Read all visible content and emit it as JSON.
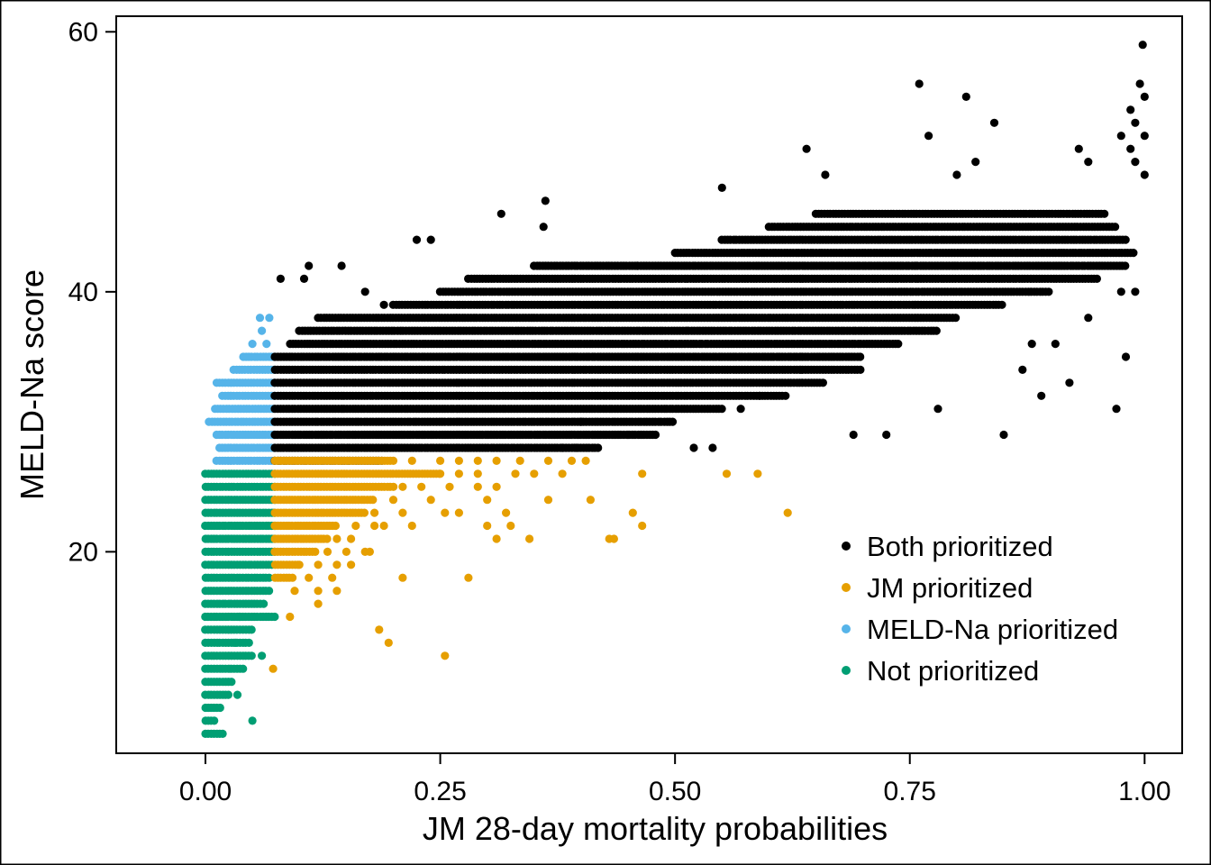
{
  "chart_data": {
    "type": "scatter",
    "xlabel": "JM 28-day mortality probabilities",
    "ylabel": "MELD-Na score",
    "xlim": [
      -0.095,
      1.04
    ],
    "ylim": [
      4.5,
      61.2
    ],
    "x_ticks": [
      0.0,
      0.25,
      0.5,
      0.75,
      1.0
    ],
    "x_tick_labels": [
      "0.00",
      "0.25",
      "0.50",
      "0.75",
      "1.00"
    ],
    "y_ticks": [
      20,
      40,
      60
    ],
    "y_tick_labels": [
      "20",
      "40",
      "60"
    ],
    "grid": false,
    "legend": {
      "placement": "bottom-right",
      "entries": [
        {
          "label": "Both prioritized",
          "color": "#000000"
        },
        {
          "label": "JM prioritized",
          "color": "#E69F00"
        },
        {
          "label": "MELD-Na prioritized",
          "color": "#56B4E9"
        },
        {
          "label": "Not prioritized",
          "color": "#009E73"
        }
      ]
    },
    "series": [
      {
        "name": "Not prioritized",
        "color": "#009E73",
        "bands": [
          {
            "y": 26,
            "x_min": 0.0,
            "x_max": 0.074
          },
          {
            "y": 25,
            "x_min": 0.0,
            "x_max": 0.074
          },
          {
            "y": 24,
            "x_min": 0.0,
            "x_max": 0.074
          },
          {
            "y": 23,
            "x_min": 0.0,
            "x_max": 0.074
          },
          {
            "y": 22,
            "x_min": 0.0,
            "x_max": 0.074
          },
          {
            "y": 21,
            "x_min": 0.0,
            "x_max": 0.074
          },
          {
            "y": 20,
            "x_min": 0.0,
            "x_max": 0.074
          },
          {
            "y": 19,
            "x_min": 0.0,
            "x_max": 0.072
          },
          {
            "y": 18,
            "x_min": 0.0,
            "x_max": 0.07
          },
          {
            "y": 17,
            "x_min": 0.0,
            "x_max": 0.068
          },
          {
            "y": 16,
            "x_min": 0.0,
            "x_max": 0.06
          },
          {
            "y": 15,
            "x_min": 0.0,
            "x_max": 0.074
          },
          {
            "y": 14,
            "x_min": 0.0,
            "x_max": 0.052
          },
          {
            "y": 13,
            "x_min": 0.0,
            "x_max": 0.048
          },
          {
            "y": 12,
            "x_min": 0.0,
            "x_max": 0.05
          },
          {
            "y": 11,
            "x_min": 0.0,
            "x_max": 0.04
          },
          {
            "y": 10,
            "x_min": 0.0,
            "x_max": 0.03
          },
          {
            "y": 9,
            "x_min": 0.0,
            "x_max": 0.025
          },
          {
            "y": 8,
            "x_min": 0.0,
            "x_max": 0.018
          },
          {
            "y": 7,
            "x_min": 0.0,
            "x_max": 0.012
          },
          {
            "y": 6,
            "x_min": 0.0,
            "x_max": 0.02
          }
        ],
        "points": [
          [
            0.036,
            15
          ],
          [
            0.032,
            13
          ],
          [
            0.034,
            9
          ],
          [
            0.05,
            7
          ],
          [
            0.062,
            16
          ],
          [
            0.06,
            12
          ]
        ]
      },
      {
        "name": "MELD-Na prioritized",
        "color": "#56B4E9",
        "bands": [
          {
            "y": 27,
            "x_min": 0.012,
            "x_max": 0.074
          },
          {
            "y": 28,
            "x_min": 0.015,
            "x_max": 0.074
          },
          {
            "y": 29,
            "x_min": 0.012,
            "x_max": 0.074
          },
          {
            "y": 30,
            "x_min": 0.004,
            "x_max": 0.074
          },
          {
            "y": 31,
            "x_min": 0.01,
            "x_max": 0.074
          },
          {
            "y": 32,
            "x_min": 0.018,
            "x_max": 0.074
          },
          {
            "y": 33,
            "x_min": 0.012,
            "x_max": 0.074
          },
          {
            "y": 34,
            "x_min": 0.03,
            "x_max": 0.074
          },
          {
            "y": 35,
            "x_min": 0.04,
            "x_max": 0.074
          }
        ],
        "points": [
          [
            0.05,
            36
          ],
          [
            0.065,
            36
          ],
          [
            0.058,
            38
          ],
          [
            0.068,
            38
          ],
          [
            0.06,
            37
          ]
        ]
      },
      {
        "name": "Both prioritized",
        "color": "#000000",
        "bands": [
          {
            "y": 27,
            "x_min": 0.074,
            "x_max": 0.19
          },
          {
            "y": 28,
            "x_min": 0.074,
            "x_max": 0.42
          },
          {
            "y": 29,
            "x_min": 0.074,
            "x_max": 0.48
          },
          {
            "y": 30,
            "x_min": 0.074,
            "x_max": 0.5
          },
          {
            "y": 31,
            "x_min": 0.074,
            "x_max": 0.55
          },
          {
            "y": 32,
            "x_min": 0.074,
            "x_max": 0.62
          },
          {
            "y": 33,
            "x_min": 0.074,
            "x_max": 0.66
          },
          {
            "y": 34,
            "x_min": 0.074,
            "x_max": 0.7
          },
          {
            "y": 35,
            "x_min": 0.074,
            "x_max": 0.7
          },
          {
            "y": 36,
            "x_min": 0.09,
            "x_max": 0.74
          },
          {
            "y": 37,
            "x_min": 0.1,
            "x_max": 0.78
          },
          {
            "y": 38,
            "x_min": 0.12,
            "x_max": 0.8
          },
          {
            "y": 39,
            "x_min": 0.2,
            "x_max": 0.85
          },
          {
            "y": 40,
            "x_min": 0.25,
            "x_max": 0.9
          },
          {
            "y": 41,
            "x_min": 0.28,
            "x_max": 0.95
          },
          {
            "y": 42,
            "x_min": 0.35,
            "x_max": 0.98
          },
          {
            "y": 43,
            "x_min": 0.5,
            "x_max": 0.99
          },
          {
            "y": 44,
            "x_min": 0.55,
            "x_max": 0.98
          },
          {
            "y": 45,
            "x_min": 0.6,
            "x_max": 0.97
          },
          {
            "y": 46,
            "x_min": 0.65,
            "x_max": 0.96
          }
        ],
        "points": [
          [
            0.08,
            41
          ],
          [
            0.11,
            42
          ],
          [
            0.105,
            41
          ],
          [
            0.145,
            42
          ],
          [
            0.17,
            40
          ],
          [
            0.19,
            39
          ],
          [
            0.225,
            44
          ],
          [
            0.24,
            44
          ],
          [
            0.315,
            46
          ],
          [
            0.362,
            47
          ],
          [
            0.36,
            45
          ],
          [
            0.46,
            42
          ],
          [
            0.55,
            48
          ],
          [
            0.64,
            51
          ],
          [
            0.66,
            49
          ],
          [
            0.76,
            56
          ],
          [
            0.77,
            52
          ],
          [
            0.81,
            55
          ],
          [
            0.84,
            53
          ],
          [
            0.82,
            50
          ],
          [
            0.8,
            49
          ],
          [
            0.93,
            51
          ],
          [
            0.94,
            50
          ],
          [
            0.985,
            54
          ],
          [
            0.995,
            56
          ],
          [
            0.998,
            59
          ],
          [
            1.0,
            55
          ],
          [
            0.99,
            53
          ],
          [
            1.0,
            52
          ],
          [
            0.985,
            51
          ],
          [
            0.99,
            50
          ],
          [
            1.0,
            49
          ],
          [
            0.975,
            52
          ],
          [
            0.85,
            29
          ],
          [
            0.69,
            29
          ],
          [
            0.725,
            29
          ],
          [
            0.97,
            31
          ],
          [
            0.94,
            38
          ],
          [
            0.98,
            35
          ],
          [
            0.99,
            40
          ],
          [
            0.975,
            40
          ],
          [
            0.905,
            36
          ],
          [
            0.88,
            36
          ],
          [
            0.87,
            34
          ],
          [
            0.89,
            32
          ],
          [
            0.92,
            33
          ],
          [
            0.78,
            31
          ],
          [
            0.57,
            31
          ],
          [
            0.59,
            32
          ],
          [
            0.52,
            28
          ],
          [
            0.54,
            28
          ],
          [
            0.45,
            29
          ],
          [
            0.4,
            30
          ],
          [
            0.38,
            28
          ],
          [
            0.395,
            28
          ]
        ]
      },
      {
        "name": "JM prioritized",
        "color": "#E69F00",
        "bands": [
          {
            "y": 27,
            "x_min": 0.074,
            "x_max": 0.2
          },
          {
            "y": 26,
            "x_min": 0.074,
            "x_max": 0.25
          },
          {
            "y": 25,
            "x_min": 0.074,
            "x_max": 0.2
          },
          {
            "y": 24,
            "x_min": 0.074,
            "x_max": 0.18
          },
          {
            "y": 23,
            "x_min": 0.074,
            "x_max": 0.17
          },
          {
            "y": 22,
            "x_min": 0.074,
            "x_max": 0.14
          },
          {
            "y": 21,
            "x_min": 0.074,
            "x_max": 0.13
          },
          {
            "y": 20,
            "x_min": 0.074,
            "x_max": 0.12
          },
          {
            "y": 19,
            "x_min": 0.074,
            "x_max": 0.1
          },
          {
            "y": 18,
            "x_min": 0.074,
            "x_max": 0.095
          }
        ],
        "points": [
          [
            0.22,
            27
          ],
          [
            0.25,
            27
          ],
          [
            0.27,
            27
          ],
          [
            0.29,
            27
          ],
          [
            0.31,
            27
          ],
          [
            0.335,
            27
          ],
          [
            0.365,
            27
          ],
          [
            0.39,
            27
          ],
          [
            0.405,
            27
          ],
          [
            0.25,
            26
          ],
          [
            0.27,
            26
          ],
          [
            0.29,
            26
          ],
          [
            0.33,
            26
          ],
          [
            0.35,
            26
          ],
          [
            0.38,
            26
          ],
          [
            0.465,
            26
          ],
          [
            0.555,
            26
          ],
          [
            0.588,
            26
          ],
          [
            0.21,
            25
          ],
          [
            0.23,
            25
          ],
          [
            0.26,
            25
          ],
          [
            0.29,
            25
          ],
          [
            0.31,
            25
          ],
          [
            0.2,
            24
          ],
          [
            0.24,
            24
          ],
          [
            0.3,
            24
          ],
          [
            0.365,
            24
          ],
          [
            0.41,
            24
          ],
          [
            0.18,
            23
          ],
          [
            0.21,
            23
          ],
          [
            0.255,
            23
          ],
          [
            0.27,
            23
          ],
          [
            0.32,
            23
          ],
          [
            0.455,
            23
          ],
          [
            0.62,
            23
          ],
          [
            0.16,
            22
          ],
          [
            0.18,
            22
          ],
          [
            0.19,
            22
          ],
          [
            0.22,
            22
          ],
          [
            0.3,
            22
          ],
          [
            0.325,
            22
          ],
          [
            0.465,
            22
          ],
          [
            0.14,
            21
          ],
          [
            0.155,
            21
          ],
          [
            0.31,
            21
          ],
          [
            0.345,
            21
          ],
          [
            0.43,
            21
          ],
          [
            0.435,
            21
          ],
          [
            0.13,
            20
          ],
          [
            0.15,
            20
          ],
          [
            0.17,
            20
          ],
          [
            0.175,
            20
          ],
          [
            0.1,
            19
          ],
          [
            0.12,
            19
          ],
          [
            0.14,
            19
          ],
          [
            0.155,
            19
          ],
          [
            0.11,
            18
          ],
          [
            0.135,
            18
          ],
          [
            0.21,
            18
          ],
          [
            0.28,
            18
          ],
          [
            0.12,
            17
          ],
          [
            0.14,
            17
          ],
          [
            0.095,
            17
          ],
          [
            0.12,
            16
          ],
          [
            0.09,
            15
          ],
          [
            0.185,
            14
          ],
          [
            0.195,
            13
          ],
          [
            0.255,
            12
          ],
          [
            0.072,
            11
          ]
        ]
      }
    ]
  }
}
